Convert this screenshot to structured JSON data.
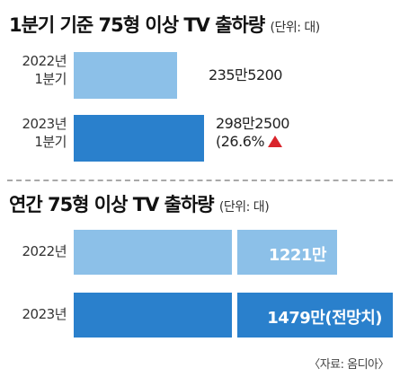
{
  "panel1": {
    "title": "1분기 기준 75형 이상 TV 출하량",
    "unit": "(단위: 대)",
    "rows": [
      {
        "label_line1": "2022년",
        "label_line2": "1분기",
        "value_text": "235만5200",
        "change_text": ""
      },
      {
        "label_line1": "2023년",
        "label_line2": "1분기",
        "value_text": "298만2500",
        "change_text": "(26.6%"
      }
    ]
  },
  "panel2": {
    "title": "연간 75형 이상 TV 출하량",
    "unit": "(단위: 대)",
    "rows": [
      {
        "label": "2022년",
        "value_text": "1221만"
      },
      {
        "label": "2023년",
        "value_text": "1479만(전망치)"
      }
    ]
  },
  "source": "〈자료: 옴디아〉",
  "colors": {
    "bar_2022": "#8cc0e8",
    "bar_2023": "#2a80cc",
    "up_arrow": "#d9252c"
  },
  "chart_data": [
    {
      "type": "bar",
      "title": "1분기 기준 75형 이상 TV 출하량",
      "unit": "(단위: 대)",
      "categories": [
        "2022년 1분기",
        "2023년 1분기"
      ],
      "values": [
        2355200,
        2982500
      ],
      "annotations": [
        "(26.6%"
      ]
    },
    {
      "type": "bar",
      "title": "연간 75형 이상 TV 출하량",
      "unit": "(단위: 대)",
      "categories": [
        "2022년",
        "2023년"
      ],
      "values": [
        12210000,
        14790000
      ]
    }
  ]
}
